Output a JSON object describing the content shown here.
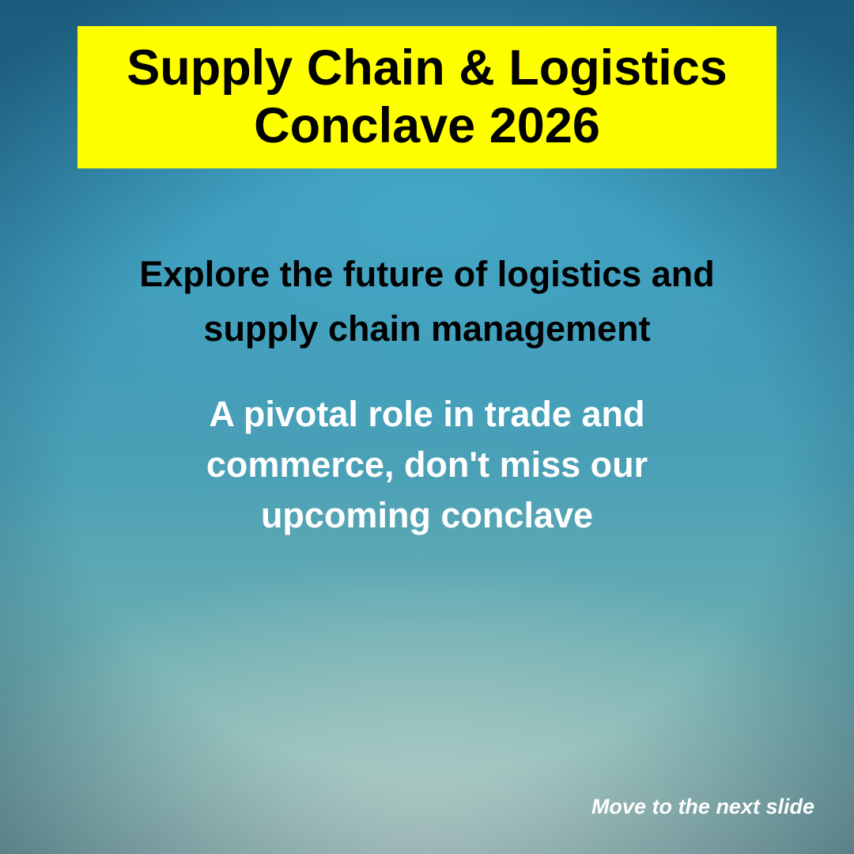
{
  "title": {
    "line1": "Supply Chain & Logistics",
    "line2": "Conclave 2026",
    "background_color": "#ffff00"
  },
  "subtitle": {
    "line1": "Explore the future of logistics and",
    "line2": "supply chain management"
  },
  "body": {
    "line1": "A pivotal role in trade and",
    "line2": "commerce, don't miss our",
    "line3": "upcoming conclave"
  },
  "navigation": {
    "next_label": "Move to the next slide"
  }
}
